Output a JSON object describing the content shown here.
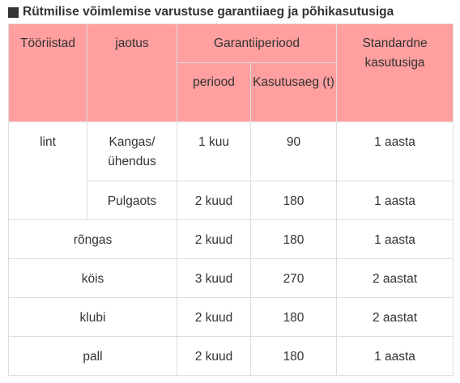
{
  "title": "Rütmilise võimlemise varustuse garantiiaeg ja põhikasutusiga",
  "headers": {
    "tool": "Tööriistad",
    "division": "jaotus",
    "warranty": "Garantiiperiood",
    "service_life": "Standardne kasutusiga",
    "period": "periood",
    "usage_time": "Kasutusaeg (t)"
  },
  "rows": [
    {
      "tool": "lint",
      "division": "Kangas/ ühendus",
      "period": "1 kuu",
      "hours": "90",
      "life": "1 aasta"
    },
    {
      "tool": "",
      "division": "Pulgaots",
      "period": "2 kuud",
      "hours": "180",
      "life": "1 aasta"
    },
    {
      "tool": "rõngas",
      "division": "",
      "period": "2 kuud",
      "hours": "180",
      "life": "1 aasta"
    },
    {
      "tool": "köis",
      "division": "",
      "period": "3 kuud",
      "hours": "270",
      "life": "2 aastat"
    },
    {
      "tool": "klubi",
      "division": "",
      "period": "2 kuud",
      "hours": "180",
      "life": "2 aastat"
    },
    {
      "tool": "pall",
      "division": "",
      "period": "2 kuud",
      "hours": "180",
      "life": "1 aasta"
    }
  ]
}
